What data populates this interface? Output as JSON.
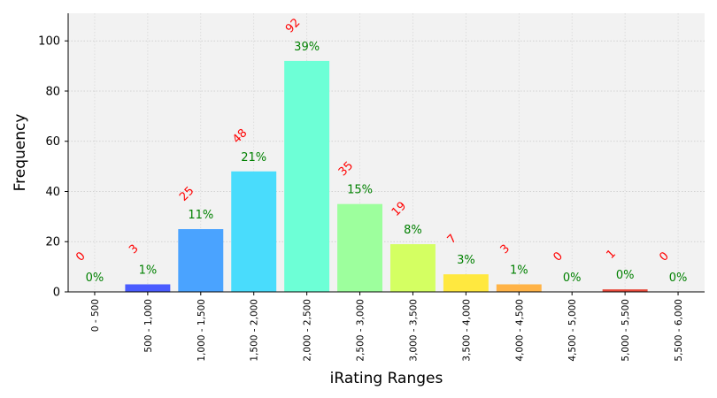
{
  "chart_data": {
    "type": "bar",
    "xlabel": "iRating Ranges",
    "ylabel": "Frequency",
    "categories": [
      "0 - 500",
      "500 - 1,000",
      "1,000 - 1,500",
      "1,500 - 2,000",
      "2,000 - 2,500",
      "2,500 - 3,000",
      "3,000 - 3,500",
      "3,500 - 4,000",
      "4,000 - 4,500",
      "4,500 - 5,000",
      "5,000 - 5,500",
      "5,500 - 6,000"
    ],
    "values": [
      0,
      3,
      25,
      48,
      92,
      35,
      19,
      7,
      3,
      0,
      1,
      0
    ],
    "count_labels": [
      "0",
      "3",
      "25",
      "48",
      "92",
      "35",
      "19",
      "7",
      "3",
      "0",
      "1",
      "0"
    ],
    "percent_labels": [
      "0%",
      "1%",
      "11%",
      "21%",
      "39%",
      "15%",
      "8%",
      "3%",
      "1%",
      "0%",
      "0%",
      "0%"
    ],
    "colors": [
      "#3b2fd6",
      "#4a5cff",
      "#4aa3ff",
      "#49dcfc",
      "#6dffd6",
      "#9dff9d",
      "#d4ff62",
      "#ffe83f",
      "#ffb347",
      "#ff6b3b",
      "#e84a3c",
      "#c8102e"
    ],
    "ylim": [
      0,
      111
    ],
    "yticks": [
      0,
      20,
      40,
      60,
      80,
      100
    ],
    "grid": true,
    "plot_background": "#f2f2f2",
    "count_color": "#ff0000",
    "percent_color": "#008000"
  }
}
